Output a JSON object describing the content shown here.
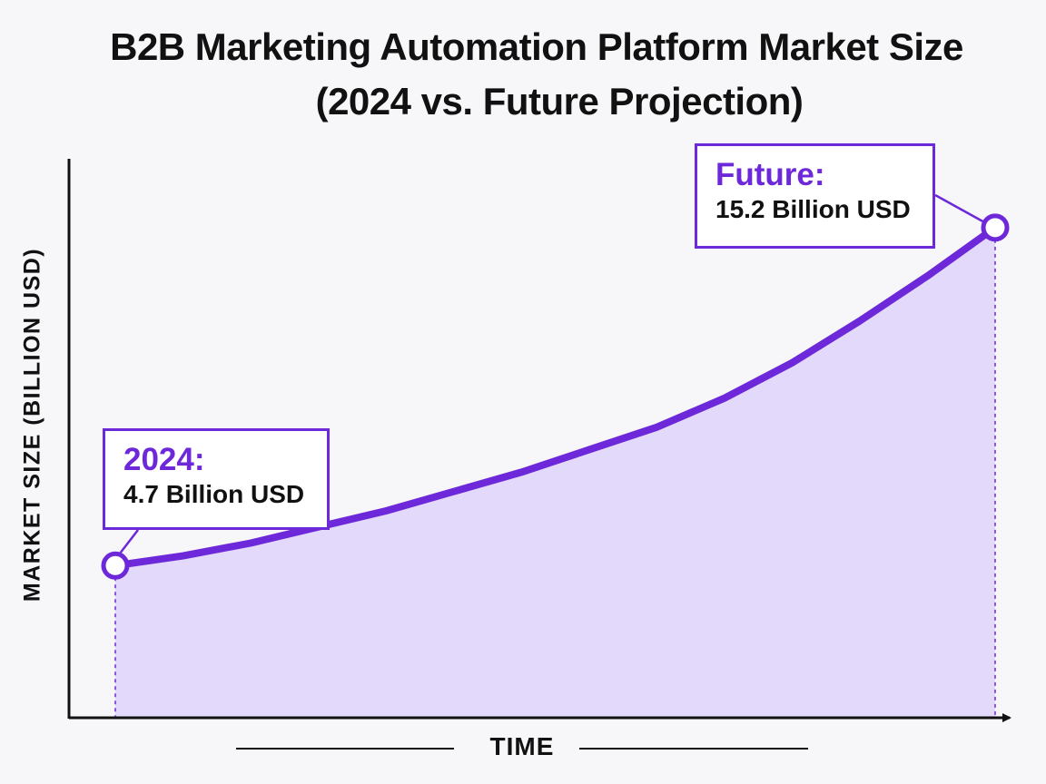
{
  "chart_data": {
    "type": "area",
    "title_line1": "B2B Marketing Automation Platform Market Size",
    "title_line2": "(2024 vs. Future Projection)",
    "xlabel": "TIME",
    "ylabel": "MARKET SIZE (BILLION USD)",
    "grid": false,
    "series": [
      {
        "values": [
          4.7,
          5.0,
          5.4,
          5.9,
          6.4,
          7.0,
          7.6,
          8.3,
          9.0,
          9.9,
          11.0,
          12.3,
          13.7,
          15.2
        ]
      }
    ],
    "ylim": [
      0,
      17
    ],
    "annotations": [
      {
        "point": "start",
        "label": "2024:",
        "value_text": "4.7 Billion USD",
        "value": 4.7
      },
      {
        "point": "end",
        "label": "Future:",
        "value_text": "15.2 Billion USD",
        "value": 15.2
      }
    ],
    "colors": {
      "line": "#6d28d9",
      "fill": "#e2d9fb",
      "axis": "#111111",
      "callout_border": "#6d28d9"
    }
  }
}
